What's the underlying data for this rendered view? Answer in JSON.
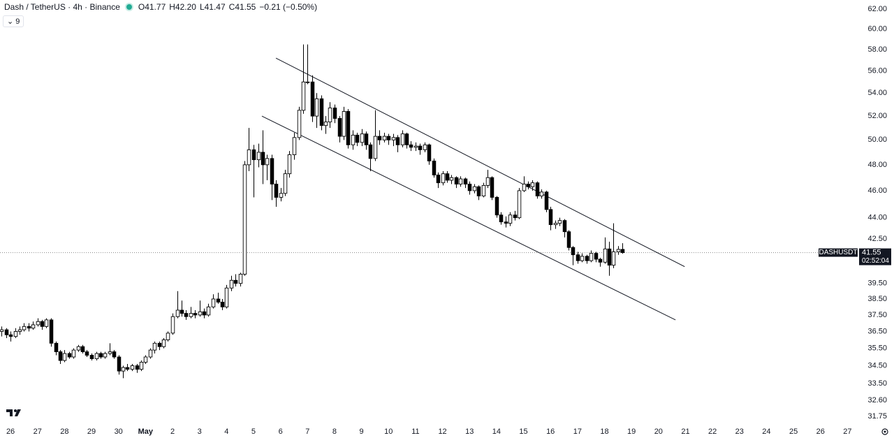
{
  "chart_data": {
    "type": "candlestick",
    "title": "Dash / TetherUS · 4h · Binance",
    "ohlc_labels": [
      "O41.77",
      "H42.20",
      "L41.47",
      "C41.55"
    ],
    "change_label": "−0.21 (−0.50%)",
    "indicator_count": 9,
    "symbol_tag": "DASHUSDT",
    "last_price": 41.55,
    "countdown": "02:52:04",
    "log_scale": true,
    "up_color": "#ffffff",
    "down_color": "#000000",
    "outline_color": "#000000",
    "trendline_color": "#131722",
    "x": [
      -0.33,
      -0.17,
      0,
      0.17,
      0.33,
      0.5,
      0.67,
      0.83,
      1,
      1.17,
      1.33,
      1.5,
      1.67,
      1.83,
      2,
      2.17,
      2.33,
      2.5,
      2.67,
      2.83,
      3,
      3.17,
      3.33,
      3.5,
      3.67,
      3.83,
      4,
      4.17,
      4.33,
      4.5,
      4.67,
      4.83,
      5,
      5.17,
      5.33,
      5.5,
      5.67,
      5.83,
      6,
      6.17,
      6.33,
      6.5,
      6.67,
      6.83,
      7,
      7.17,
      7.33,
      7.5,
      7.67,
      7.83,
      8,
      8.17,
      8.33,
      8.5,
      8.67,
      8.83,
      9,
      9.17,
      9.33,
      9.5,
      9.67,
      9.83,
      10,
      10.17,
      10.33,
      10.5,
      10.67,
      10.83,
      11,
      11.17,
      11.33,
      11.5,
      11.67,
      11.83,
      12,
      12.17,
      12.33,
      12.5,
      12.67,
      12.83,
      13,
      13.17,
      13.33,
      13.5,
      13.67,
      13.83,
      14,
      14.17,
      14.33,
      14.5,
      14.67,
      14.83,
      15,
      15.17,
      15.33,
      15.5,
      15.67,
      15.83,
      16,
      16.17,
      16.33,
      16.5,
      16.67,
      16.83,
      17,
      17.17,
      17.33,
      17.5,
      17.67,
      17.83,
      18,
      18.17,
      18.33,
      18.5,
      18.67,
      18.83,
      19,
      19.17,
      19.33,
      19.5,
      19.67,
      19.83,
      20,
      20.17,
      20.33,
      20.5,
      20.67,
      20.83,
      21,
      21.17,
      21.33,
      21.5,
      21.67,
      21.83,
      22,
      22.17,
      22.33,
      22.5,
      22.67
    ],
    "open": [
      36.5,
      36.6,
      36.3,
      36.2,
      36.5,
      36.6,
      36.8,
      36.7,
      36.9,
      37.1,
      36.8,
      37.2,
      35.8,
      35.3,
      34.8,
      35.2,
      35.0,
      35.4,
      35.6,
      35.3,
      35.1,
      34.9,
      35.2,
      35.0,
      35.2,
      35.3,
      35.0,
      34.2,
      34.4,
      34.3,
      34.5,
      34.3,
      34.7,
      35.0,
      35.4,
      35.8,
      35.6,
      36.0,
      36.4,
      37.4,
      37.8,
      37.6,
      37.4,
      37.6,
      37.5,
      37.7,
      37.5,
      38.0,
      38.5,
      38.3,
      38.0,
      39.2,
      39.7,
      39.5,
      40.1,
      48.0,
      49.2,
      48.4,
      49.0,
      48.0,
      48.5,
      46.5,
      45.5,
      45.8,
      47.3,
      48.8,
      50.2,
      52.5,
      55.0,
      55.0,
      52.0,
      53.5,
      51.2,
      51.5,
      52.7,
      51.8,
      50.3,
      52.4,
      49.6,
      50.4,
      49.8,
      50.5,
      49.6,
      48.5,
      50.3,
      50.0,
      50.3,
      50.0,
      50.2,
      49.6,
      50.5,
      49.6,
      49.4,
      49.5,
      49.2,
      49.6,
      48.3,
      47.2,
      46.6,
      47.3,
      46.8,
      47.0,
      46.5,
      46.9,
      46.5,
      46.0,
      46.3,
      45.6,
      46.4,
      47.0,
      45.5,
      44.2,
      43.7,
      43.6,
      44.2,
      44.0,
      46.0,
      46.5,
      46.3,
      46.6,
      45.6,
      45.9,
      44.6,
      43.5,
      43.6,
      43.8,
      43.0,
      41.9,
      41.4,
      41.0,
      41.3,
      41.0,
      41.5,
      41.1,
      40.9,
      41.8,
      40.7,
      41.6,
      41.77
    ],
    "high": [
      36.8,
      36.7,
      36.5,
      36.7,
      36.8,
      37.0,
      37.0,
      37.1,
      37.3,
      37.2,
      37.3,
      37.3,
      35.9,
      35.4,
      35.4,
      35.3,
      35.5,
      35.7,
      35.7,
      35.4,
      35.2,
      35.3,
      35.3,
      35.3,
      35.8,
      35.4,
      35.1,
      34.5,
      34.6,
      34.6,
      34.6,
      34.8,
      35.1,
      35.5,
      35.9,
      35.9,
      36.1,
      36.5,
      37.6,
      39.0,
      38.4,
      37.8,
      38.0,
      37.8,
      38.4,
      37.9,
      38.2,
      38.8,
      38.9,
      38.5,
      39.4,
      40.0,
      40.1,
      40.2,
      48.3,
      51.0,
      49.6,
      49.7,
      50.8,
      48.8,
      48.8,
      46.8,
      46.2,
      47.6,
      49.1,
      50.6,
      52.8,
      58.5,
      58.5,
      55.6,
      54.0,
      53.8,
      52.0,
      53.2,
      53.0,
      52.0,
      52.8,
      52.6,
      50.8,
      50.6,
      50.9,
      50.7,
      49.8,
      52.5,
      50.8,
      50.6,
      50.5,
      50.5,
      50.4,
      50.8,
      50.6,
      49.9,
      49.8,
      49.7,
      49.8,
      49.7,
      48.5,
      47.4,
      47.5,
      47.5,
      47.2,
      47.1,
      47.1,
      47.0,
      46.7,
      46.5,
      46.4,
      46.6,
      47.6,
      47.1,
      45.6,
      44.4,
      44.1,
      44.4,
      44.5,
      46.2,
      47.1,
      46.7,
      46.8,
      46.7,
      46.1,
      46.0,
      44.8,
      43.8,
      44.0,
      43.9,
      43.1,
      42.0,
      41.6,
      41.5,
      41.4,
      41.7,
      41.6,
      41.2,
      42.6,
      42.3,
      43.6,
      42.0,
      42.2
    ],
    "low": [
      36.2,
      36.1,
      35.9,
      36.1,
      36.3,
      36.5,
      36.5,
      36.6,
      36.8,
      36.6,
      36.7,
      35.6,
      35.1,
      34.6,
      34.7,
      34.9,
      34.9,
      35.3,
      35.2,
      35.0,
      34.8,
      34.8,
      34.9,
      34.9,
      35.1,
      34.9,
      34.0,
      33.8,
      34.2,
      34.2,
      34.1,
      34.2,
      34.6,
      34.9,
      35.2,
      35.4,
      35.5,
      35.9,
      36.3,
      37.3,
      37.4,
      37.2,
      37.3,
      37.3,
      37.4,
      37.3,
      37.4,
      37.9,
      38.2,
      37.8,
      37.9,
      39.0,
      39.3,
      39.3,
      40.0,
      47.5,
      45.5,
      47.8,
      46.5,
      46.8,
      45.3,
      44.8,
      45.2,
      45.6,
      47.0,
      48.4,
      50.0,
      52.2,
      54.8,
      51.5,
      51.0,
      50.8,
      50.5,
      51.0,
      51.4,
      49.8,
      50.0,
      49.3,
      49.2,
      49.5,
      49.5,
      49.2,
      47.5,
      48.3,
      49.6,
      49.8,
      49.6,
      49.5,
      49.0,
      49.4,
      49.3,
      49.1,
      49.1,
      48.8,
      49.0,
      48.0,
      47.0,
      46.2,
      46.4,
      46.6,
      46.5,
      46.2,
      46.3,
      46.2,
      45.7,
      45.8,
      45.3,
      45.5,
      46.2,
      45.3,
      44.0,
      43.5,
      43.3,
      43.4,
      43.8,
      43.9,
      45.9,
      46.1,
      46.0,
      45.4,
      45.4,
      44.4,
      43.1,
      43.2,
      43.4,
      42.6,
      41.7,
      40.7,
      40.8,
      40.9,
      40.8,
      40.9,
      40.9,
      40.6,
      40.8,
      40.0,
      40.5,
      41.4,
      41.47
    ],
    "close": [
      36.6,
      36.3,
      36.2,
      36.5,
      36.6,
      36.8,
      36.7,
      36.9,
      37.1,
      36.8,
      37.2,
      35.8,
      35.3,
      34.8,
      35.2,
      35.0,
      35.4,
      35.6,
      35.3,
      35.1,
      34.9,
      35.2,
      35.0,
      35.2,
      35.3,
      35.0,
      34.2,
      34.4,
      34.3,
      34.5,
      34.3,
      34.7,
      35.0,
      35.4,
      35.8,
      35.6,
      36.0,
      36.4,
      37.4,
      37.8,
      37.6,
      37.4,
      37.6,
      37.5,
      37.7,
      37.5,
      38.0,
      38.5,
      38.3,
      38.0,
      39.2,
      39.7,
      39.5,
      40.1,
      48.0,
      49.2,
      48.4,
      49.0,
      48.0,
      48.5,
      46.5,
      45.5,
      45.8,
      47.3,
      48.8,
      50.2,
      52.5,
      55.0,
      55.0,
      52.0,
      53.5,
      51.2,
      51.5,
      52.7,
      51.8,
      50.3,
      52.4,
      49.6,
      50.4,
      49.8,
      50.5,
      49.6,
      48.5,
      50.3,
      50.0,
      50.3,
      50.0,
      50.2,
      49.6,
      50.5,
      49.6,
      49.4,
      49.5,
      49.2,
      49.6,
      48.3,
      47.2,
      46.6,
      47.3,
      46.8,
      47.0,
      46.5,
      46.9,
      46.5,
      46.0,
      46.3,
      45.6,
      46.4,
      47.0,
      45.5,
      44.2,
      43.7,
      43.6,
      44.2,
      44.0,
      46.0,
      46.5,
      46.3,
      46.6,
      45.6,
      45.9,
      44.6,
      43.5,
      43.6,
      43.8,
      43.0,
      41.9,
      41.4,
      41.0,
      41.3,
      41.0,
      41.5,
      41.1,
      40.9,
      41.8,
      40.7,
      41.6,
      41.77,
      41.55
    ],
    "trendlines": [
      {
        "x": [
          9.83,
          24.97
        ],
        "y": [
          57.2,
          40.6
        ]
      },
      {
        "x": [
          9.31,
          24.63
        ],
        "y": [
          52.0,
          37.2
        ]
      }
    ],
    "xlim": [
      -0.39,
      31.3
    ],
    "ylim": [
      31.42,
      62.93
    ],
    "xticks": [
      {
        "value": 0,
        "label": "26"
      },
      {
        "value": 1,
        "label": "27"
      },
      {
        "value": 2,
        "label": "28"
      },
      {
        "value": 3,
        "label": "29"
      },
      {
        "value": 4,
        "label": "30"
      },
      {
        "value": 5,
        "label": "May"
      },
      {
        "value": 6,
        "label": "2"
      },
      {
        "value": 7,
        "label": "3"
      },
      {
        "value": 8,
        "label": "4"
      },
      {
        "value": 9,
        "label": "5"
      },
      {
        "value": 10,
        "label": "6"
      },
      {
        "value": 11,
        "label": "7"
      },
      {
        "value": 12,
        "label": "8"
      },
      {
        "value": 13,
        "label": "9"
      },
      {
        "value": 14,
        "label": "10"
      },
      {
        "value": 15,
        "label": "11"
      },
      {
        "value": 16,
        "label": "12"
      },
      {
        "value": 17,
        "label": "13"
      },
      {
        "value": 18,
        "label": "14"
      },
      {
        "value": 19,
        "label": "15"
      },
      {
        "value": 20,
        "label": "16"
      },
      {
        "value": 21,
        "label": "17"
      },
      {
        "value": 22,
        "label": "18"
      },
      {
        "value": 23,
        "label": "19"
      },
      {
        "value": 24,
        "label": "20"
      },
      {
        "value": 25,
        "label": "21"
      },
      {
        "value": 26,
        "label": "22"
      },
      {
        "value": 27,
        "label": "23"
      },
      {
        "value": 28,
        "label": "24"
      },
      {
        "value": 29,
        "label": "25"
      },
      {
        "value": 30,
        "label": "26"
      },
      {
        "value": 31,
        "label": "27"
      }
    ],
    "yticks": [
      {
        "value": 62,
        "label": "62.00"
      },
      {
        "value": 60,
        "label": "60.00"
      },
      {
        "value": 58,
        "label": "58.00"
      },
      {
        "value": 56,
        "label": "56.00"
      },
      {
        "value": 54,
        "label": "54.00"
      },
      {
        "value": 52,
        "label": "52.00"
      },
      {
        "value": 50,
        "label": "50.00"
      },
      {
        "value": 48,
        "label": "48.00"
      },
      {
        "value": 46,
        "label": "46.00"
      },
      {
        "value": 44,
        "label": "44.00"
      },
      {
        "value": 42.5,
        "label": "42.50"
      },
      {
        "value": 39.5,
        "label": "39.50"
      },
      {
        "value": 38.5,
        "label": "38.50"
      },
      {
        "value": 37.5,
        "label": "37.50"
      },
      {
        "value": 36.5,
        "label": "36.50"
      },
      {
        "value": 35.5,
        "label": "35.50"
      },
      {
        "value": 34.5,
        "label": "34.50"
      },
      {
        "value": 33.5,
        "label": "33.50"
      },
      {
        "value": 32.6,
        "label": "32.60"
      },
      {
        "value": 31.75,
        "label": "31.75"
      }
    ]
  }
}
